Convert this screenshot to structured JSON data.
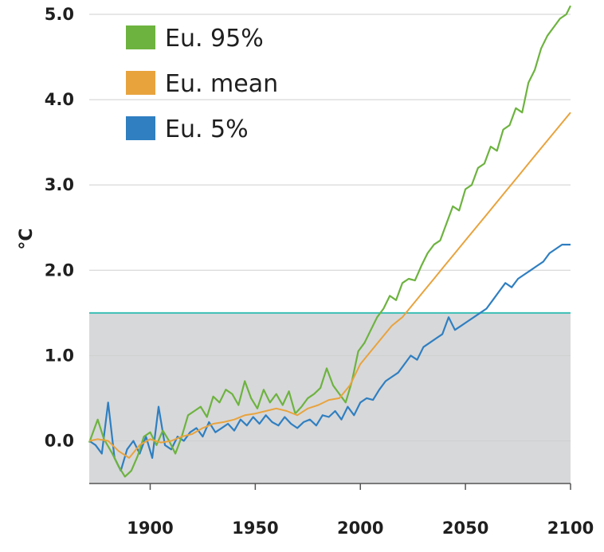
{
  "chart_data": {
    "type": "line",
    "title": "",
    "xlabel": "",
    "ylabel": "°C",
    "xlim": [
      1871,
      2100
    ],
    "ylim": [
      -0.5,
      5.0
    ],
    "xticks": [
      "1900",
      "1950",
      "2000",
      "2050",
      "2100"
    ],
    "yticks": [
      "0.0",
      "1.0",
      "2.0",
      "3.0",
      "4.0",
      "5.0"
    ],
    "grid": "horizontal",
    "legend_position": "top-left",
    "threshold": {
      "value": 1.5,
      "color": "#3cbfb5",
      "shaded_below": true,
      "shade_color": "#d7d8da"
    },
    "series": [
      {
        "name": "Eu. 95%",
        "color": "#6db33f",
        "x": [
          1871,
          1875,
          1878,
          1882,
          1885,
          1888,
          1891,
          1894,
          1897,
          1900,
          1903,
          1906,
          1909,
          1912,
          1915,
          1918,
          1921,
          1924,
          1927,
          1930,
          1933,
          1936,
          1939,
          1942,
          1945,
          1948,
          1951,
          1954,
          1957,
          1960,
          1963,
          1966,
          1969,
          1972,
          1975,
          1978,
          1981,
          1984,
          1987,
          1990,
          1993,
          1996,
          1999,
          2002,
          2005,
          2008,
          2011,
          2014,
          2017,
          2020,
          2023,
          2026,
          2029,
          2032,
          2035,
          2038,
          2041,
          2044,
          2047,
          2050,
          2053,
          2056,
          2059,
          2062,
          2065,
          2068,
          2071,
          2074,
          2077,
          2080,
          2083,
          2086,
          2089,
          2092,
          2095,
          2098,
          2100
        ],
        "values": [
          -0.02,
          0.25,
          0.02,
          -0.15,
          -0.3,
          -0.42,
          -0.35,
          -0.18,
          0.05,
          0.1,
          -0.05,
          0.12,
          0.0,
          -0.15,
          0.05,
          0.3,
          0.35,
          0.4,
          0.28,
          0.52,
          0.45,
          0.6,
          0.55,
          0.42,
          0.7,
          0.5,
          0.38,
          0.6,
          0.45,
          0.55,
          0.42,
          0.58,
          0.32,
          0.4,
          0.5,
          0.55,
          0.62,
          0.85,
          0.65,
          0.55,
          0.45,
          0.7,
          1.05,
          1.15,
          1.3,
          1.45,
          1.55,
          1.7,
          1.65,
          1.85,
          1.9,
          1.88,
          2.05,
          2.2,
          2.3,
          2.35,
          2.55,
          2.75,
          2.7,
          2.95,
          3.0,
          3.2,
          3.25,
          3.45,
          3.4,
          3.65,
          3.7,
          3.9,
          3.85,
          4.2,
          4.35,
          4.6,
          4.75,
          4.85,
          4.95,
          5.0,
          5.1
        ]
      },
      {
        "name": "Eu. mean",
        "color": "#e8a33d",
        "x": [
          1871,
          1875,
          1880,
          1885,
          1890,
          1895,
          1900,
          1905,
          1910,
          1915,
          1920,
          1925,
          1930,
          1935,
          1940,
          1945,
          1950,
          1955,
          1960,
          1965,
          1970,
          1975,
          1980,
          1985,
          1990,
          1995,
          2000,
          2005,
          2010,
          2015,
          2020,
          2025,
          2030,
          2035,
          2040,
          2045,
          2050,
          2055,
          2060,
          2065,
          2070,
          2075,
          2080,
          2085,
          2090,
          2095,
          2100
        ],
        "values": [
          0.0,
          0.02,
          0.0,
          -0.12,
          -0.2,
          -0.05,
          0.02,
          -0.02,
          0.0,
          0.05,
          0.08,
          0.15,
          0.2,
          0.22,
          0.25,
          0.3,
          0.32,
          0.35,
          0.38,
          0.35,
          0.3,
          0.38,
          0.42,
          0.48,
          0.5,
          0.65,
          0.9,
          1.05,
          1.2,
          1.35,
          1.45,
          1.6,
          1.75,
          1.9,
          2.05,
          2.2,
          2.35,
          2.5,
          2.65,
          2.8,
          2.95,
          3.1,
          3.25,
          3.4,
          3.55,
          3.7,
          3.85
        ]
      },
      {
        "name": "Eu. 5%",
        "color": "#2f7fc1",
        "x": [
          1871,
          1874,
          1877,
          1880,
          1883,
          1886,
          1889,
          1892,
          1895,
          1898,
          1901,
          1904,
          1907,
          1910,
          1913,
          1916,
          1919,
          1922,
          1925,
          1928,
          1931,
          1934,
          1937,
          1940,
          1943,
          1946,
          1949,
          1952,
          1955,
          1958,
          1961,
          1964,
          1967,
          1970,
          1973,
          1976,
          1979,
          1982,
          1985,
          1988,
          1991,
          1994,
          1997,
          2000,
          2003,
          2006,
          2009,
          2012,
          2015,
          2018,
          2021,
          2024,
          2027,
          2030,
          2033,
          2036,
          2039,
          2042,
          2045,
          2048,
          2051,
          2054,
          2057,
          2060,
          2063,
          2066,
          2069,
          2072,
          2075,
          2078,
          2081,
          2084,
          2087,
          2090,
          2093,
          2096,
          2100
        ],
        "values": [
          0.0,
          -0.05,
          -0.15,
          0.45,
          -0.2,
          -0.35,
          -0.1,
          0.0,
          -0.15,
          0.05,
          -0.2,
          0.4,
          -0.05,
          -0.1,
          0.05,
          0.0,
          0.1,
          0.15,
          0.05,
          0.22,
          0.1,
          0.15,
          0.2,
          0.12,
          0.25,
          0.18,
          0.28,
          0.2,
          0.3,
          0.22,
          0.18,
          0.28,
          0.2,
          0.15,
          0.22,
          0.25,
          0.18,
          0.3,
          0.28,
          0.35,
          0.25,
          0.4,
          0.3,
          0.45,
          0.5,
          0.48,
          0.6,
          0.7,
          0.75,
          0.8,
          0.9,
          1.0,
          0.95,
          1.1,
          1.15,
          1.2,
          1.25,
          1.45,
          1.3,
          1.35,
          1.4,
          1.45,
          1.5,
          1.55,
          1.65,
          1.75,
          1.85,
          1.8,
          1.9,
          1.95,
          2.0,
          2.05,
          2.1,
          2.2,
          2.25,
          2.3,
          2.3
        ]
      }
    ]
  }
}
